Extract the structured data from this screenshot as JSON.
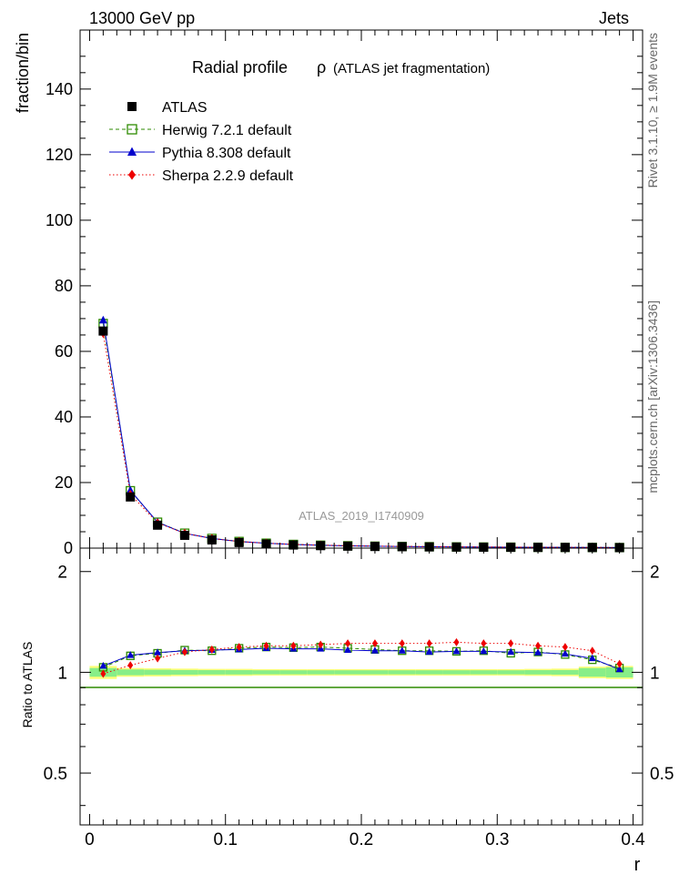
{
  "header": {
    "left": "13000 GeV pp",
    "right": "Jets"
  },
  "side_text": {
    "rivet": "Rivet 3.1.10, ≥ 1.9M events",
    "mcplots": "mcplots.cern.ch [arXiv:1306.3436]"
  },
  "chart_data": [
    {
      "type": "line",
      "panel": "main",
      "title": "Radial profile",
      "title_symbol": "ρ",
      "title_note": "(ATLAS jet fragmentation)",
      "ylabel": "fraction/bin",
      "watermark": "ATLAS_2019_I1740909",
      "xlim": [
        -0.007,
        0.407
      ],
      "ylim": [
        0,
        158
      ],
      "yticks": [
        0,
        20,
        40,
        60,
        80,
        100,
        120,
        140
      ],
      "x": [
        0.01,
        0.03,
        0.05,
        0.07,
        0.09,
        0.11,
        0.13,
        0.15,
        0.17,
        0.19,
        0.21,
        0.23,
        0.25,
        0.27,
        0.29,
        0.31,
        0.33,
        0.35,
        0.37,
        0.39
      ],
      "series": [
        {
          "name": "ATLAS",
          "style": "data",
          "color": "#000000",
          "values": [
            66.2,
            15.6,
            7.0,
            3.9,
            2.5,
            1.7,
            1.25,
            0.95,
            0.75,
            0.6,
            0.5,
            0.43,
            0.37,
            0.32,
            0.28,
            0.25,
            0.22,
            0.2,
            0.18,
            0.16
          ]
        },
        {
          "name": "Herwig 7.2.1 default",
          "style": "square-open-dashed",
          "color": "#2e8b00",
          "values": [
            68.5,
            17.5,
            7.9,
            4.55,
            2.95,
            2.03,
            1.5,
            1.13,
            0.89,
            0.71,
            0.59,
            0.5,
            0.43,
            0.37,
            0.33,
            0.29,
            0.26,
            0.23,
            0.2,
            0.17
          ]
        },
        {
          "name": "Pythia 8.308 default",
          "style": "triangle-solid",
          "color": "#0000cc",
          "values": [
            69.5,
            17.6,
            7.9,
            4.5,
            2.95,
            2.03,
            1.5,
            1.12,
            0.88,
            0.7,
            0.58,
            0.5,
            0.43,
            0.37,
            0.32,
            0.29,
            0.25,
            0.23,
            0.2,
            0.17
          ]
        },
        {
          "name": "Sherpa 2.2.9 default",
          "style": "diamond-dotted",
          "color": "#ee0000",
          "values": [
            65.5,
            16.4,
            7.7,
            4.5,
            2.95,
            2.03,
            1.52,
            1.13,
            0.92,
            0.74,
            0.62,
            0.53,
            0.46,
            0.4,
            0.35,
            0.31,
            0.27,
            0.24,
            0.21,
            0.17
          ]
        }
      ]
    },
    {
      "type": "line",
      "panel": "ratio",
      "ylabel": "Ratio to ATLAS",
      "xlabel": "r",
      "xlim": [
        -0.007,
        0.407
      ],
      "ylim": [
        0.35,
        2.35
      ],
      "yticks": [
        0.5,
        1,
        2
      ],
      "ytick_labels": [
        "0.5",
        "1",
        "2"
      ],
      "xticks": [
        0,
        0.1,
        0.2,
        0.3,
        0.4
      ],
      "xtick_labels": [
        "0",
        "0.1",
        "0.2",
        "0.3",
        "0.4"
      ],
      "x": [
        0.01,
        0.03,
        0.05,
        0.07,
        0.09,
        0.11,
        0.13,
        0.15,
        0.17,
        0.19,
        0.21,
        0.23,
        0.25,
        0.27,
        0.29,
        0.31,
        0.33,
        0.35,
        0.37,
        0.39
      ],
      "band_yellow_halfwidth": [
        0.045,
        0.03,
        0.028,
        0.026,
        0.024,
        0.024,
        0.022,
        0.022,
        0.022,
        0.022,
        0.022,
        0.022,
        0.022,
        0.022,
        0.022,
        0.022,
        0.024,
        0.026,
        0.04,
        0.045
      ],
      "band_green_halfwidth": [
        0.03,
        0.02,
        0.018,
        0.016,
        0.015,
        0.015,
        0.014,
        0.014,
        0.014,
        0.014,
        0.014,
        0.014,
        0.014,
        0.014,
        0.014,
        0.014,
        0.015,
        0.016,
        0.03,
        0.035
      ],
      "series": [
        {
          "name": "Herwig 7.2.1 default",
          "style": "square-open-dashed",
          "color": "#2e8b00",
          "values": [
            1.035,
            1.12,
            1.14,
            1.165,
            1.16,
            1.18,
            1.19,
            1.185,
            1.19,
            1.18,
            1.17,
            1.16,
            1.16,
            1.155,
            1.16,
            1.14,
            1.15,
            1.13,
            1.09,
            1.03
          ]
        },
        {
          "name": "Pythia 8.308 default",
          "style": "triangle-solid",
          "color": "#0000cc",
          "values": [
            1.045,
            1.125,
            1.145,
            1.16,
            1.165,
            1.17,
            1.18,
            1.175,
            1.175,
            1.165,
            1.16,
            1.16,
            1.15,
            1.155,
            1.155,
            1.15,
            1.145,
            1.135,
            1.1,
            1.02
          ]
        },
        {
          "name": "Sherpa 2.2.9 default",
          "style": "diamond-dotted",
          "color": "#ee0000",
          "values": [
            0.99,
            1.05,
            1.1,
            1.15,
            1.17,
            1.19,
            1.2,
            1.2,
            1.21,
            1.22,
            1.22,
            1.22,
            1.22,
            1.23,
            1.22,
            1.22,
            1.2,
            1.19,
            1.16,
            1.06
          ]
        }
      ]
    }
  ]
}
